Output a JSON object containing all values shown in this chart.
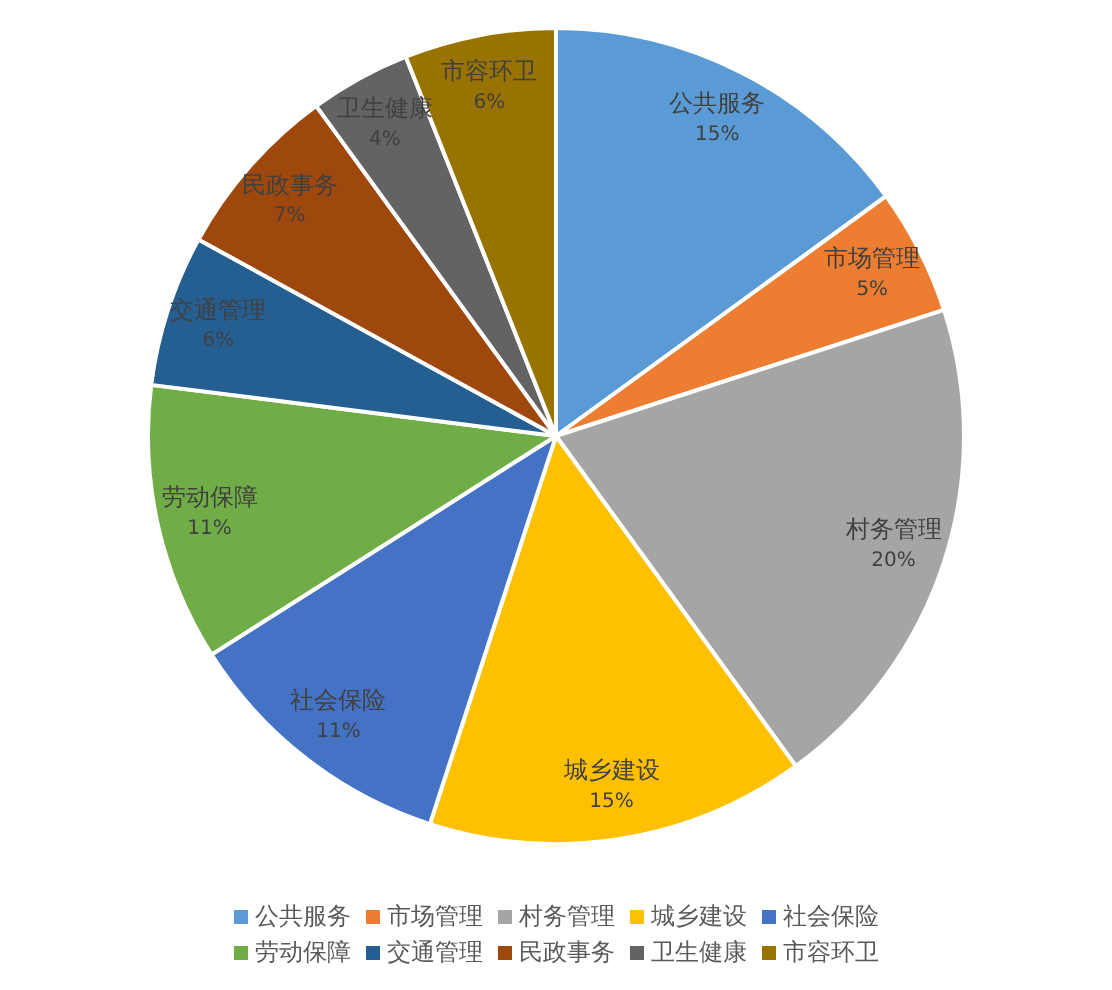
{
  "chart_data": {
    "type": "pie",
    "categories": [
      "公共服务",
      "市场管理",
      "村务管理",
      "城乡建设",
      "社会保险",
      "劳动保障",
      "交通管理",
      "民政事务",
      "卫生健康",
      "市容环卫"
    ],
    "values": [
      15,
      5,
      20,
      15,
      11,
      11,
      6,
      7,
      4,
      6
    ],
    "value_labels": [
      "15%",
      "5%",
      "20%",
      "15%",
      "11%",
      "11%",
      "6%",
      "7%",
      "4%",
      "6%"
    ],
    "colors": [
      "#5b9bd5",
      "#ed7d31",
      "#a5a5a5",
      "#ffc000",
      "#4472c4",
      "#70ad47",
      "#255e91",
      "#9e480e",
      "#636363",
      "#997300"
    ],
    "legend": "bottom"
  }
}
